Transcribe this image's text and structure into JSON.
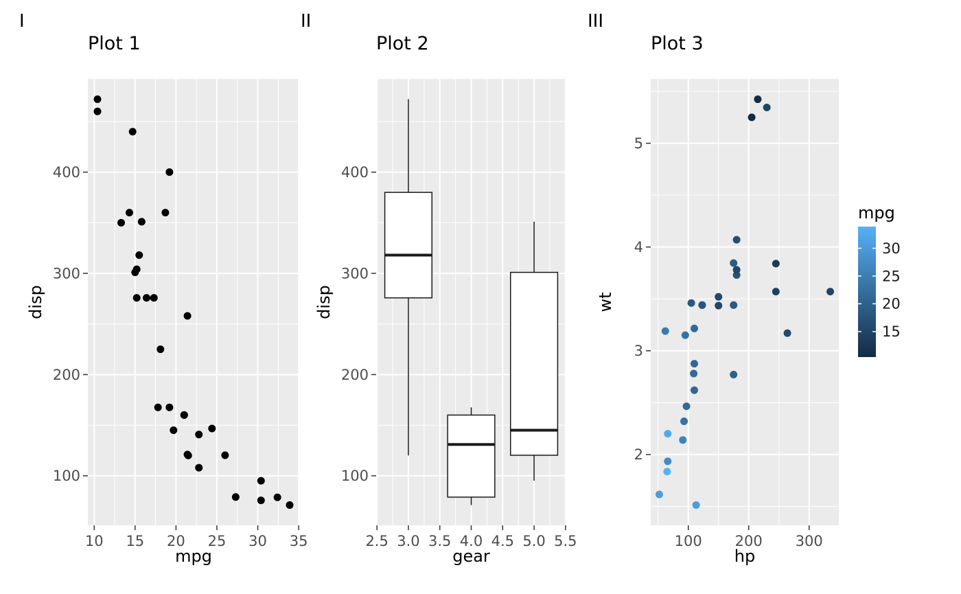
{
  "style": {
    "background": "#FFFFFF",
    "panel_bg": "#EBEBEB",
    "grid": "#FFFFFF",
    "tick": "#333333",
    "tick_label": "#4D4D4D",
    "point": "#000000",
    "box_outline": "#1A1A1A",
    "box_fill": "#FFFFFF"
  },
  "legend": {
    "title": "mpg",
    "tick_values": [
      30,
      25,
      20,
      15
    ],
    "tick_labels": [
      "30",
      "25",
      "20",
      "15"
    ],
    "low": "#132B43",
    "high": "#56B1F7",
    "domain": [
      10.4,
      33.9
    ]
  },
  "chart_data": [
    {
      "type": "scatter",
      "tag": "I",
      "title": "Plot 1",
      "xlabel": "mpg",
      "ylabel": "disp",
      "xlim": [
        9.225,
        35.075
      ],
      "ylim": [
        51.055,
        492.045
      ],
      "xtick_values": [
        10,
        15,
        20,
        25,
        30,
        35
      ],
      "xtick_labels": [
        "10",
        "15",
        "20",
        "25",
        "30",
        "35"
      ],
      "ytick_values": [
        100,
        200,
        300,
        400
      ],
      "ytick_labels": [
        "100",
        "200",
        "300",
        "400"
      ],
      "xminor": [
        12.5,
        17.5,
        22.5,
        27.5,
        32.5
      ],
      "yminor": [
        150,
        250,
        350,
        450
      ],
      "points": [
        [
          21,
          160
        ],
        [
          21,
          160
        ],
        [
          22.8,
          108
        ],
        [
          21.4,
          258
        ],
        [
          18.7,
          360
        ],
        [
          18.1,
          225
        ],
        [
          14.3,
          360
        ],
        [
          24.4,
          146.7
        ],
        [
          22.8,
          140.8
        ],
        [
          19.2,
          167.6
        ],
        [
          17.8,
          167.6
        ],
        [
          16.4,
          275.8
        ],
        [
          17.3,
          275.8
        ],
        [
          15.2,
          275.8
        ],
        [
          10.4,
          472
        ],
        [
          10.4,
          460
        ],
        [
          14.7,
          440
        ],
        [
          32.4,
          78.7
        ],
        [
          30.4,
          75.7
        ],
        [
          33.9,
          71.1
        ],
        [
          21.5,
          120.1
        ],
        [
          15.5,
          318
        ],
        [
          15.2,
          304
        ],
        [
          13.3,
          350
        ],
        [
          19.2,
          400
        ],
        [
          27.3,
          79
        ],
        [
          26,
          120.3
        ],
        [
          30.4,
          95.1
        ],
        [
          15.8,
          351
        ],
        [
          19.7,
          145
        ],
        [
          15,
          301
        ],
        [
          21.4,
          121
        ]
      ]
    },
    {
      "type": "box",
      "tag": "II",
      "title": "Plot 2",
      "xlabel": "gear",
      "ylabel": "disp",
      "xlim": [
        2.4875,
        5.5125
      ],
      "ylim": [
        51.055,
        492.045
      ],
      "xtick_values": [
        2.5,
        3,
        3.5,
        4,
        4.5,
        5,
        5.5
      ],
      "xtick_labels": [
        "2.5",
        "3.0",
        "3.5",
        "4.0",
        "4.5",
        "5.0",
        "5.5"
      ],
      "ytick_values": [
        100,
        200,
        300,
        400
      ],
      "ytick_labels": [
        "100",
        "200",
        "300",
        "400"
      ],
      "xminor": [
        2.75,
        3.25,
        3.75,
        4.25,
        4.75,
        5.25
      ],
      "yminor": [
        150,
        250,
        350,
        450
      ],
      "box_width": 0.75,
      "boxes": [
        {
          "x": 3,
          "whisker_low": 120.1,
          "q1": 275.8,
          "median": 318,
          "q3": 380,
          "whisker_high": 472
        },
        {
          "x": 4,
          "whisker_low": 71.1,
          "q1": 78.925,
          "median": 130.9,
          "q3": 160,
          "whisker_high": 167.6
        },
        {
          "x": 5,
          "whisker_low": 95.1,
          "q1": 120.3,
          "median": 145,
          "q3": 301,
          "whisker_high": 351
        }
      ]
    },
    {
      "type": "scatter",
      "tag": "III",
      "title": "Plot 3",
      "xlabel": "hp",
      "ylabel": "wt",
      "xlim": [
        37.85,
        349.15
      ],
      "ylim": [
        1.3174,
        5.6196
      ],
      "xtick_values": [
        100,
        200,
        300
      ],
      "xtick_labels": [
        "100",
        "200",
        "300"
      ],
      "ytick_values": [
        2,
        3,
        4,
        5
      ],
      "ytick_labels": [
        "2",
        "3",
        "4",
        "5"
      ],
      "xminor": [
        50,
        150,
        250
      ],
      "yminor": [
        1.5,
        2.5,
        3.5,
        4.5,
        5.5
      ],
      "color_by": "mpg",
      "color_scale": {
        "low": "#132B43",
        "high": "#56B1F7",
        "domain": [
          10.4,
          33.9
        ]
      },
      "points": [
        [
          110,
          2.62,
          21
        ],
        [
          110,
          2.875,
          21
        ],
        [
          93,
          2.32,
          22.8
        ],
        [
          110,
          3.215,
          21.4
        ],
        [
          175,
          3.44,
          18.7
        ],
        [
          105,
          3.46,
          18.1
        ],
        [
          245,
          3.57,
          14.3
        ],
        [
          62,
          3.19,
          24.4
        ],
        [
          95,
          3.15,
          22.8
        ],
        [
          123,
          3.44,
          19.2
        ],
        [
          123,
          3.44,
          17.8
        ],
        [
          180,
          4.07,
          16.4
        ],
        [
          180,
          3.73,
          17.3
        ],
        [
          180,
          3.78,
          15.2
        ],
        [
          205,
          5.25,
          10.4
        ],
        [
          215,
          5.424,
          10.4
        ],
        [
          230,
          5.345,
          14.7
        ],
        [
          66,
          2.2,
          32.4
        ],
        [
          52,
          1.615,
          30.4
        ],
        [
          65,
          1.835,
          33.9
        ],
        [
          97,
          2.465,
          21.5
        ],
        [
          150,
          3.52,
          15.5
        ],
        [
          150,
          3.435,
          15.2
        ],
        [
          245,
          3.84,
          13.3
        ],
        [
          175,
          3.845,
          19.2
        ],
        [
          66,
          1.935,
          27.3
        ],
        [
          91,
          2.14,
          26
        ],
        [
          113,
          1.513,
          30.4
        ],
        [
          264,
          3.17,
          15.8
        ],
        [
          175,
          2.77,
          19.7
        ],
        [
          335,
          3.57,
          15
        ],
        [
          109,
          2.78,
          21.4
        ]
      ]
    }
  ]
}
